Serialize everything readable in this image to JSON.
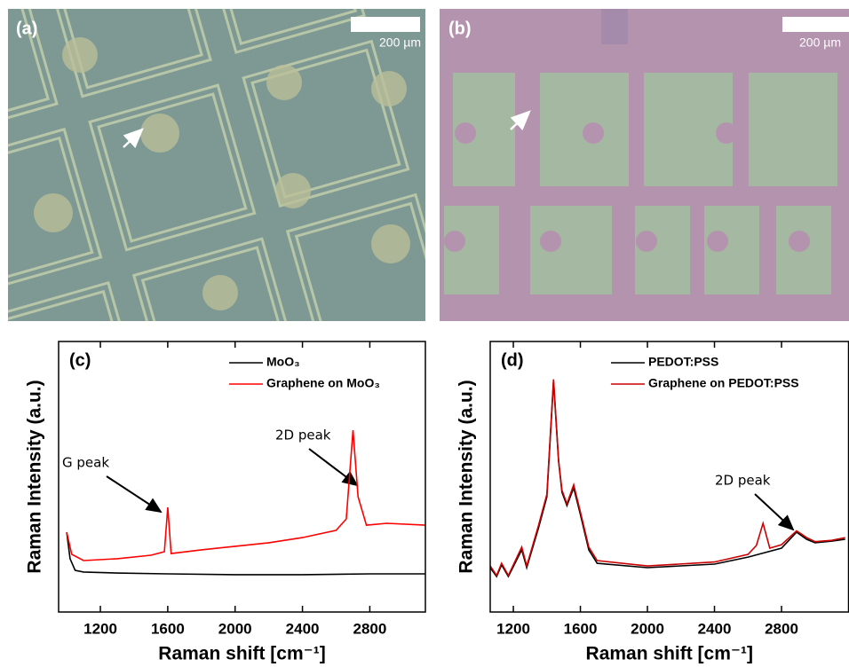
{
  "images": [
    {
      "label": "(a)",
      "scale": "200 µm"
    },
    {
      "label": "(b)",
      "scale": "200 µm"
    }
  ],
  "chart_data": [
    {
      "type": "line",
      "panel": "(c)",
      "x_label": "Raman shift [cm⁻¹]",
      "y_label": "Raman Intensity (a.u.)",
      "annotations": [
        "G peak",
        "2D peak"
      ],
      "xlim": [
        952,
        3130
      ],
      "xticks": [
        1200,
        1600,
        2000,
        2400,
        2800
      ],
      "ylim": [
        0,
        100
      ],
      "legend": "upper right",
      "series": [
        {
          "name": "MoO₃",
          "color": "#000000",
          "x": [
            1000,
            1020,
            1050,
            1100,
            1300,
            1600,
            2000,
            2400,
            2800,
            3130
          ],
          "values": [
            29.5,
            19.7,
            15.4,
            14.8,
            14.4,
            14.1,
            13.8,
            13.8,
            14.1,
            14.1
          ]
        },
        {
          "name": "Graphene on MoO₃",
          "color": "#ff0000",
          "x": [
            1000,
            1030,
            1100,
            1300,
            1500,
            1580,
            1600,
            1620,
            1800,
            2000,
            2200,
            2400,
            2600,
            2660,
            2700,
            2730,
            2780,
            2900,
            3130
          ],
          "values": [
            29.5,
            21.3,
            19.0,
            19.7,
            21.0,
            22.3,
            38.7,
            21.6,
            23.0,
            24.3,
            25.6,
            27.5,
            30.2,
            34.4,
            67.2,
            42.6,
            32.1,
            32.8,
            32.1
          ]
        }
      ]
    },
    {
      "type": "line",
      "panel": "(d)",
      "x_label": "Raman shift [cm⁻¹]",
      "y_label": "Raman Intensity (a.u.)",
      "annotations": [
        "2D peak"
      ],
      "xlim": [
        1062,
        3200
      ],
      "xticks": [
        1200,
        1600,
        2000,
        2400,
        2800
      ],
      "ylim": [
        0,
        100
      ],
      "legend": "upper right",
      "series": [
        {
          "name": "PEDOT:PSS",
          "color": "#000000",
          "x": [
            1062,
            1100,
            1130,
            1170,
            1250,
            1280,
            1350,
            1400,
            1440,
            1470,
            1490,
            1520,
            1560,
            1600,
            1650,
            1700,
            2000,
            2400,
            2600,
            2800,
            2890,
            2950,
            3000,
            3100,
            3180
          ],
          "values": [
            16.4,
            13.1,
            17.4,
            13.1,
            23.0,
            16.4,
            31.1,
            42.6,
            85.2,
            55.7,
            44.3,
            39.3,
            45.9,
            36.1,
            23.0,
            18.0,
            16.4,
            17.7,
            20.3,
            23.6,
            29.5,
            26.9,
            25.6,
            26.2,
            26.9
          ]
        },
        {
          "name": "Graphene on PEDOT:PSS",
          "color": "#cc0000",
          "x": [
            1062,
            1100,
            1130,
            1170,
            1250,
            1280,
            1350,
            1400,
            1440,
            1470,
            1490,
            1520,
            1560,
            1600,
            1650,
            1700,
            2000,
            2400,
            2600,
            2650,
            2690,
            2730,
            2800,
            2890,
            2950,
            3000,
            3100,
            3180
          ],
          "values": [
            17,
            13.5,
            18,
            13.5,
            24,
            17,
            32,
            43.5,
            86,
            56,
            45,
            40,
            47,
            37,
            24,
            19,
            17,
            18.5,
            21.3,
            24.6,
            32.8,
            23.6,
            24.9,
            30,
            27.5,
            26,
            26.5,
            27.5
          ]
        }
      ]
    }
  ]
}
